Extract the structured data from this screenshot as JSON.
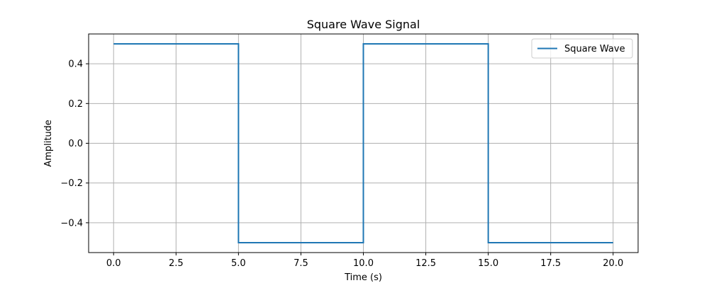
{
  "chart_data": {
    "type": "line",
    "title": "Square Wave Signal",
    "xlabel": "Time (s)",
    "ylabel": "Amplitude",
    "xlim": [
      -1.0,
      21.0
    ],
    "ylim": [
      -0.55,
      0.55
    ],
    "x_ticks": [
      0.0,
      2.5,
      5.0,
      7.5,
      10.0,
      12.5,
      15.0,
      17.5,
      20.0
    ],
    "x_tick_labels": [
      "0.0",
      "2.5",
      "5.0",
      "7.5",
      "10.0",
      "12.5",
      "15.0",
      "17.5",
      "20.0"
    ],
    "y_ticks": [
      -0.4,
      -0.2,
      0.0,
      0.2,
      0.4
    ],
    "y_tick_labels": [
      "−0.4",
      "−0.2",
      "0.0",
      "0.2",
      "0.4"
    ],
    "grid": true,
    "legend_position": "top-right",
    "series": [
      {
        "name": "Square Wave",
        "color": "#1f77b4",
        "x": [
          0.0,
          5.0,
          5.0,
          10.0,
          10.0,
          15.0,
          15.0,
          20.0
        ],
        "y": [
          0.5,
          0.5,
          -0.5,
          -0.5,
          0.5,
          0.5,
          -0.5,
          -0.5
        ]
      }
    ]
  }
}
